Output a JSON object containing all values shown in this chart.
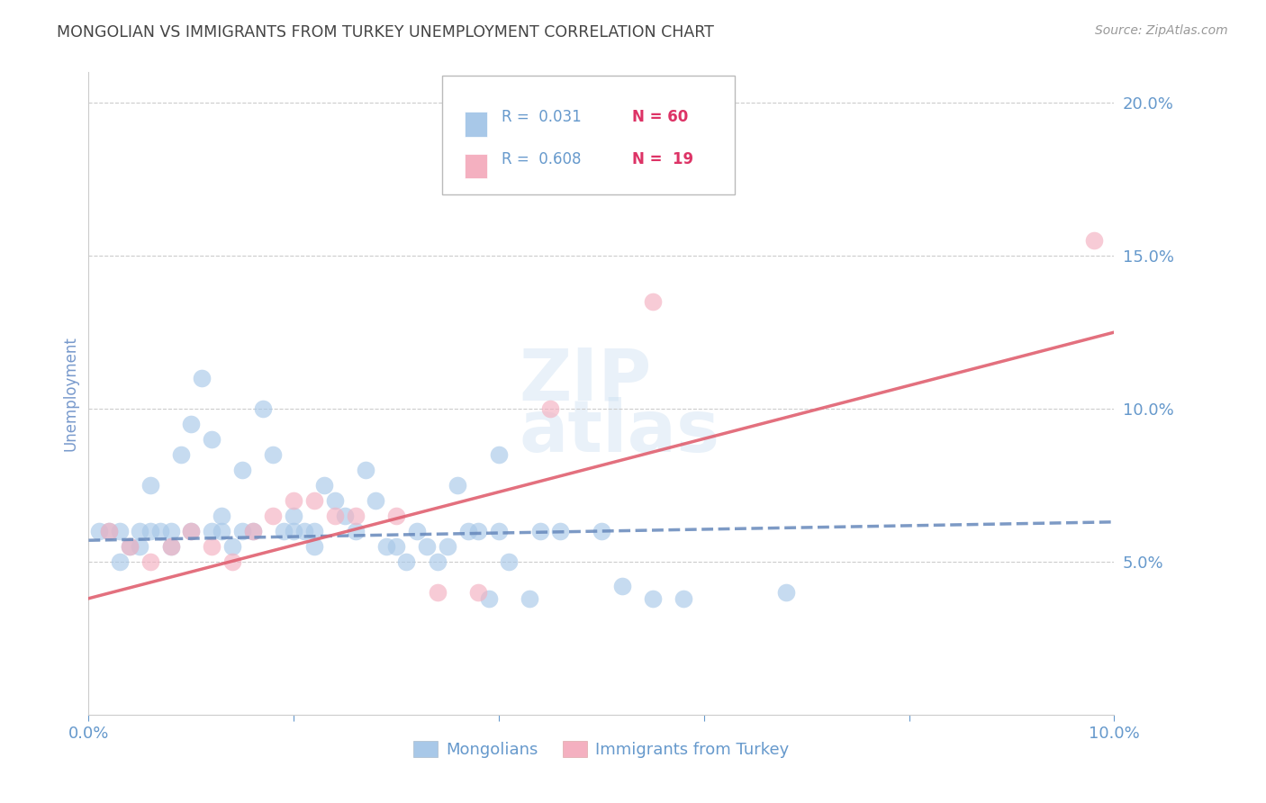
{
  "title": "MONGOLIAN VS IMMIGRANTS FROM TURKEY UNEMPLOYMENT CORRELATION CHART",
  "source": "Source: ZipAtlas.com",
  "ylabel": "Unemployment",
  "xlim": [
    0.0,
    0.1
  ],
  "ylim": [
    0.0,
    0.21
  ],
  "yticks": [
    0.05,
    0.1,
    0.15,
    0.2
  ],
  "xticks": [
    0.0,
    0.02,
    0.04,
    0.06,
    0.08,
    0.1
  ],
  "xtick_labels": [
    "0.0%",
    "",
    "",
    "",
    "",
    "10.0%"
  ],
  "ytick_labels": [
    "5.0%",
    "10.0%",
    "15.0%",
    "20.0%"
  ],
  "blue_color": "#a8c8e8",
  "pink_color": "#f4b0c0",
  "blue_line_color": "#6688bb",
  "pink_line_color": "#e06070",
  "watermark_top": "ZIP",
  "watermark_bot": "atlas",
  "legend_r1": "R =  0.031",
  "legend_n1": "N = 60",
  "legend_r2": "R =  0.608",
  "legend_n2": "N =  19",
  "legend_label1": "Mongolians",
  "legend_label2": "Immigrants from Turkey",
  "blue_scatter_x": [
    0.001,
    0.002,
    0.003,
    0.003,
    0.004,
    0.005,
    0.005,
    0.006,
    0.006,
    0.007,
    0.008,
    0.008,
    0.009,
    0.01,
    0.01,
    0.011,
    0.012,
    0.012,
    0.013,
    0.013,
    0.014,
    0.015,
    0.015,
    0.016,
    0.017,
    0.018,
    0.019,
    0.02,
    0.02,
    0.021,
    0.022,
    0.022,
    0.023,
    0.024,
    0.025,
    0.026,
    0.027,
    0.028,
    0.029,
    0.03,
    0.031,
    0.032,
    0.033,
    0.034,
    0.035,
    0.036,
    0.037,
    0.038,
    0.039,
    0.04,
    0.041,
    0.043,
    0.044,
    0.046,
    0.05,
    0.052,
    0.055,
    0.058,
    0.04,
    0.068
  ],
  "blue_scatter_y": [
    0.06,
    0.06,
    0.05,
    0.06,
    0.055,
    0.055,
    0.06,
    0.06,
    0.075,
    0.06,
    0.055,
    0.06,
    0.085,
    0.06,
    0.095,
    0.11,
    0.06,
    0.09,
    0.06,
    0.065,
    0.055,
    0.08,
    0.06,
    0.06,
    0.1,
    0.085,
    0.06,
    0.06,
    0.065,
    0.06,
    0.06,
    0.055,
    0.075,
    0.07,
    0.065,
    0.06,
    0.08,
    0.07,
    0.055,
    0.055,
    0.05,
    0.06,
    0.055,
    0.05,
    0.055,
    0.075,
    0.06,
    0.06,
    0.038,
    0.06,
    0.05,
    0.038,
    0.06,
    0.06,
    0.06,
    0.042,
    0.038,
    0.038,
    0.085,
    0.04
  ],
  "pink_scatter_x": [
    0.002,
    0.004,
    0.006,
    0.008,
    0.01,
    0.012,
    0.014,
    0.016,
    0.018,
    0.02,
    0.022,
    0.024,
    0.026,
    0.03,
    0.034,
    0.038,
    0.045,
    0.055,
    0.098
  ],
  "pink_scatter_y": [
    0.06,
    0.055,
    0.05,
    0.055,
    0.06,
    0.055,
    0.05,
    0.06,
    0.065,
    0.07,
    0.07,
    0.065,
    0.065,
    0.065,
    0.04,
    0.04,
    0.1,
    0.135,
    0.155
  ],
  "blue_line_x": [
    0.0,
    0.1
  ],
  "blue_line_y": [
    0.057,
    0.063
  ],
  "pink_line_x": [
    0.0,
    0.1
  ],
  "pink_line_y": [
    0.038,
    0.125
  ],
  "background_color": "#ffffff",
  "grid_color": "#cccccc",
  "axis_label_color": "#7799cc",
  "title_color": "#444444",
  "tick_color": "#6699cc",
  "rn_color": "#333333",
  "n_color": "#dd4466"
}
